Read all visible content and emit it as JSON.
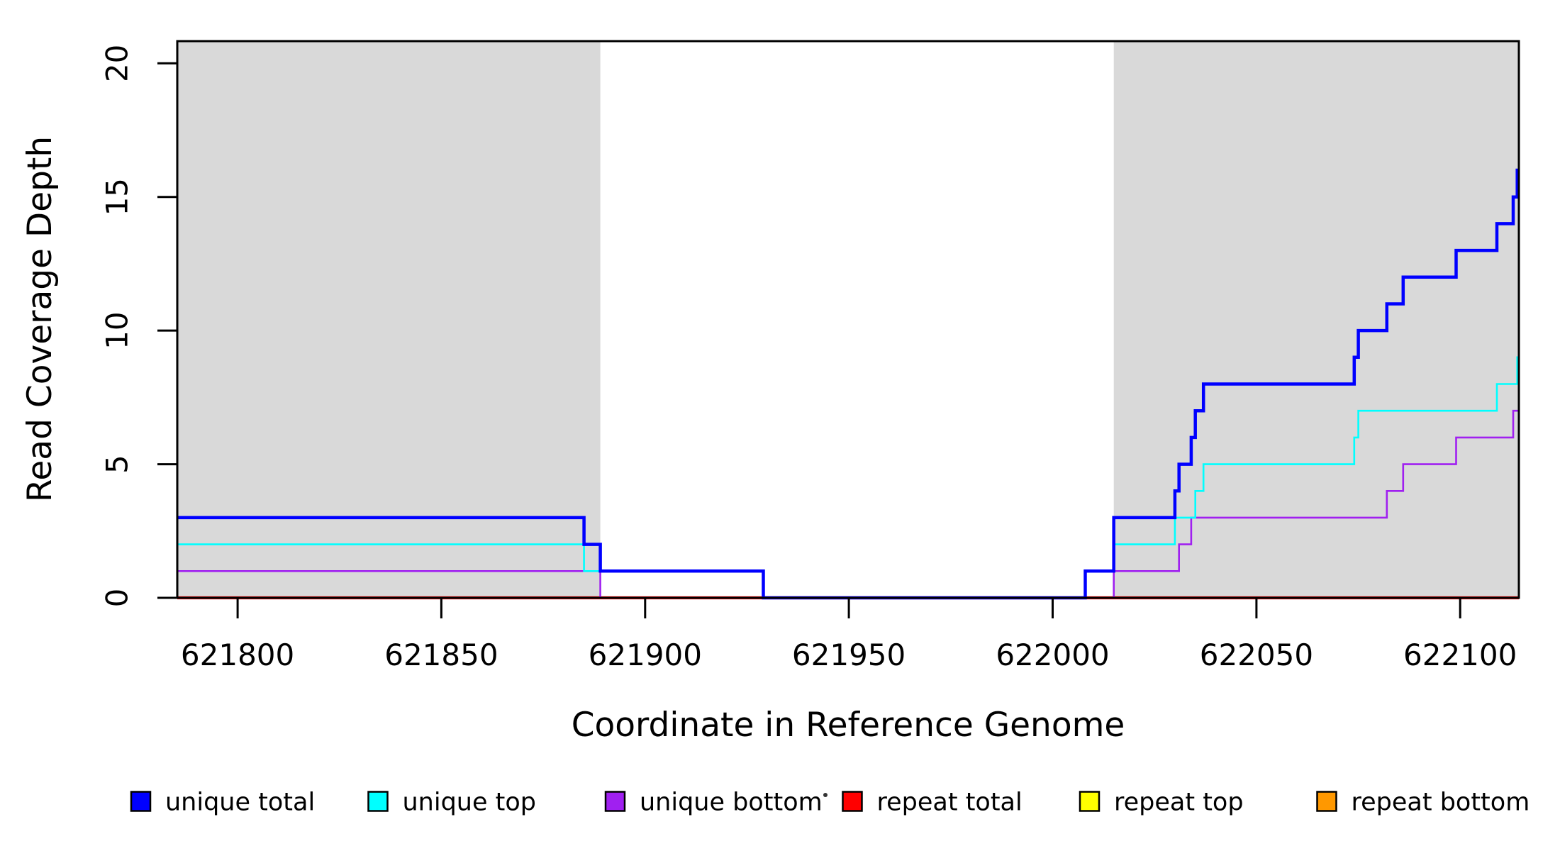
{
  "figure": {
    "background": "#FFFFFF",
    "shade_color": "#D9D9D9",
    "axis_color": "#000000"
  },
  "chart_data": {
    "type": "line",
    "subtype": "step-coverage",
    "title": "",
    "xlabel": "Coordinate in Reference Genome",
    "ylabel": "Read Coverage Depth",
    "xlim": [
      621785.2,
      622114.4
    ],
    "ylim": [
      0,
      20.83
    ],
    "grid": false,
    "x_tick_values": [
      621800,
      621850,
      621900,
      621950,
      622000,
      622050,
      622100
    ],
    "x_tick_labels": [
      "621800",
      "621850",
      "621900",
      "621950",
      "622000",
      "622050",
      "622100"
    ],
    "y_tick_values": [
      0,
      5,
      10,
      15,
      20
    ],
    "y_tick_labels": [
      "0",
      "5",
      "10",
      "15",
      "20"
    ],
    "shaded_regions": [
      {
        "name": "left-repeat-region",
        "x0": 621785.2,
        "x1": 621889,
        "color": "#D9D9D9"
      },
      {
        "name": "right-repeat-region",
        "x0": 622015,
        "x1": 622114.4,
        "color": "#D9D9D9"
      }
    ],
    "series": [
      {
        "name": "repeat total",
        "color": "#FF0000",
        "lw": 4.2,
        "segments": [
          {
            "points": [
              [
                621785.2,
                0
              ]
            ],
            "end": 622114.4
          }
        ]
      },
      {
        "name": "repeat top",
        "color": "#FFFF00",
        "lw": 2.6,
        "segments": [
          {
            "points": [
              [
                621785.2,
                0
              ]
            ],
            "end": 621889
          },
          {
            "points": [
              [
                622015,
                0
              ]
            ],
            "end": 622114.4
          }
        ]
      },
      {
        "name": "repeat bottom",
        "color": "#FF9800",
        "lw": 3,
        "segments": [
          {
            "points": [
              [
                621785.2,
                0
              ]
            ],
            "end": 621889
          },
          {
            "points": [
              [
                622015,
                0
              ]
            ],
            "end": 622114.4
          }
        ]
      },
      {
        "name": "unique bottom",
        "color": "#A020F0",
        "lw": 2.6,
        "segments": [
          {
            "points": [
              [
                621785.2,
                1
              ],
              [
                621889,
                0
              ],
              [
                622015,
                1
              ],
              [
                622031,
                2
              ],
              [
                622034,
                3
              ],
              [
                622082,
                4
              ],
              [
                622086,
                5
              ],
              [
                622099,
                6
              ],
              [
                622113,
                7
              ]
            ],
            "end": 622114.4
          }
        ]
      },
      {
        "name": "unique top",
        "color": "#00FFFF",
        "lw": 2.6,
        "segments": [
          {
            "points": [
              [
                621785.2,
                2
              ],
              [
                621885,
                1
              ],
              [
                621929,
                0
              ],
              [
                622008,
                1
              ],
              [
                622015,
                2
              ],
              [
                622030,
                3
              ],
              [
                622035,
                4
              ],
              [
                622037,
                5
              ],
              [
                622074,
                6
              ],
              [
                622075,
                7
              ],
              [
                622109,
                8
              ],
              [
                622114,
                9
              ]
            ],
            "end": 622114.4
          }
        ]
      },
      {
        "name": "unique total",
        "color": "#0000FF",
        "lw": 4.5,
        "segments": [
          {
            "points": [
              [
                621785.2,
                3
              ],
              [
                621885,
                2
              ],
              [
                621889,
                1
              ],
              [
                621929,
                0
              ],
              [
                622008,
                1
              ],
              [
                622015,
                3
              ],
              [
                622030,
                4
              ],
              [
                622031,
                5
              ],
              [
                622034,
                6
              ],
              [
                622035,
                7
              ],
              [
                622037,
                8
              ],
              [
                622074,
                9
              ],
              [
                622075,
                10
              ],
              [
                622082,
                11
              ],
              [
                622086,
                12
              ],
              [
                622099,
                13
              ],
              [
                622109,
                14
              ],
              [
                622113,
                15
              ],
              [
                622114,
                16
              ]
            ],
            "end": 622114.4
          }
        ]
      }
    ],
    "legend_position": "bottom"
  },
  "legend": {
    "items": [
      {
        "label": "unique total",
        "color": "#0000FF"
      },
      {
        "label": "unique top",
        "color": "#00FFFF"
      },
      {
        "label": "unique bottom",
        "color": "#A020F0"
      },
      {
        "label": "repeat total",
        "color": "#FF0000"
      },
      {
        "label": "repeat top",
        "color": "#FFFF00"
      },
      {
        "label": "repeat bottom",
        "color": "#FF9800"
      }
    ]
  }
}
